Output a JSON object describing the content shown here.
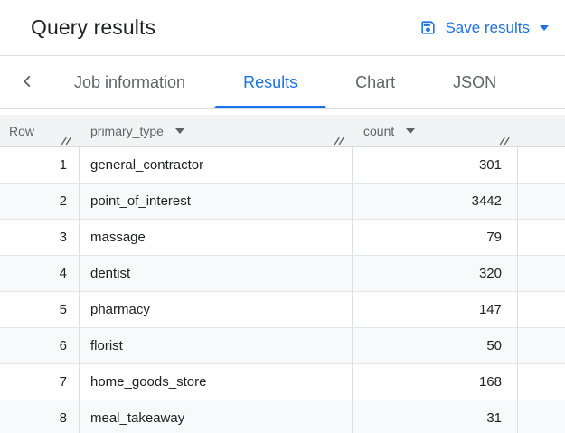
{
  "header": {
    "title": "Query results",
    "save_results_label": "Save results"
  },
  "tabs": [
    {
      "label": "Job information",
      "active": false
    },
    {
      "label": "Results",
      "active": true
    },
    {
      "label": "Chart",
      "active": false
    },
    {
      "label": "JSON",
      "active": false
    }
  ],
  "results_table": {
    "columns": [
      {
        "label": "Row",
        "sortable": false,
        "resizable": true
      },
      {
        "label": "primary_type",
        "sortable": true,
        "resizable": true
      },
      {
        "label": "count",
        "sortable": true,
        "resizable": true
      }
    ],
    "rows": [
      {
        "row": "1",
        "primary_type": "general_contractor",
        "count": "301"
      },
      {
        "row": "2",
        "primary_type": "point_of_interest",
        "count": "3442"
      },
      {
        "row": "3",
        "primary_type": "massage",
        "count": "79"
      },
      {
        "row": "4",
        "primary_type": "dentist",
        "count": "320"
      },
      {
        "row": "5",
        "primary_type": "pharmacy",
        "count": "147"
      },
      {
        "row": "6",
        "primary_type": "florist",
        "count": "50"
      },
      {
        "row": "7",
        "primary_type": "home_goods_store",
        "count": "168"
      },
      {
        "row": "8",
        "primary_type": "meal_takeaway",
        "count": "31"
      }
    ]
  },
  "colors": {
    "accent_blue": "#1a73e8",
    "text_primary": "#202124",
    "text_secondary": "#5f6368",
    "table_header_bg": "#f1f3f4",
    "stripe_bg": "#f8f9fa",
    "divider": "#dadce0"
  }
}
